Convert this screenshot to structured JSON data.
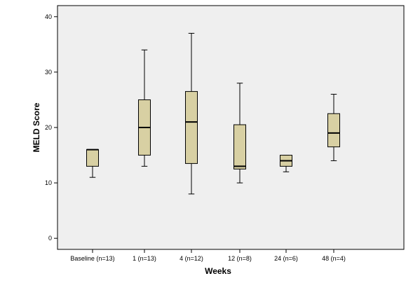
{
  "chart_data": {
    "type": "boxplot",
    "title": "",
    "xlabel": "Weeks",
    "ylabel": "MELD Score",
    "ylim": [
      -2,
      42
    ],
    "yticks": [
      0,
      10,
      20,
      30,
      40
    ],
    "grid": false,
    "legend": "none",
    "colors": {
      "plot_background": "#efefef",
      "box_fill": "#d8d0a3",
      "stroke": "#000000"
    },
    "categories": [
      "Baseline (n=13)",
      "1 (n=13)",
      "4 (n=12)",
      "12 (n=8)",
      "24 (n=6)",
      "48 (n=4)"
    ],
    "boxes": [
      {
        "category": "Baseline (n=13)",
        "min": 11,
        "q1": 13,
        "median": 16,
        "q3": 16,
        "max": 16
      },
      {
        "category": "1 (n=13)",
        "min": 13,
        "q1": 15,
        "median": 20,
        "q3": 25,
        "max": 34
      },
      {
        "category": "4 (n=12)",
        "min": 8,
        "q1": 13.5,
        "median": 21,
        "q3": 26.5,
        "max": 37
      },
      {
        "category": "12 (n=8)",
        "min": 10,
        "q1": 12.5,
        "median": 13,
        "q3": 20.5,
        "max": 28
      },
      {
        "category": "24 (n=6)",
        "min": 12,
        "q1": 13,
        "median": 14,
        "q3": 15,
        "max": 15
      },
      {
        "category": "48 (n=4)",
        "min": 14,
        "q1": 16.5,
        "median": 19,
        "q3": 22.5,
        "max": 26
      }
    ]
  }
}
